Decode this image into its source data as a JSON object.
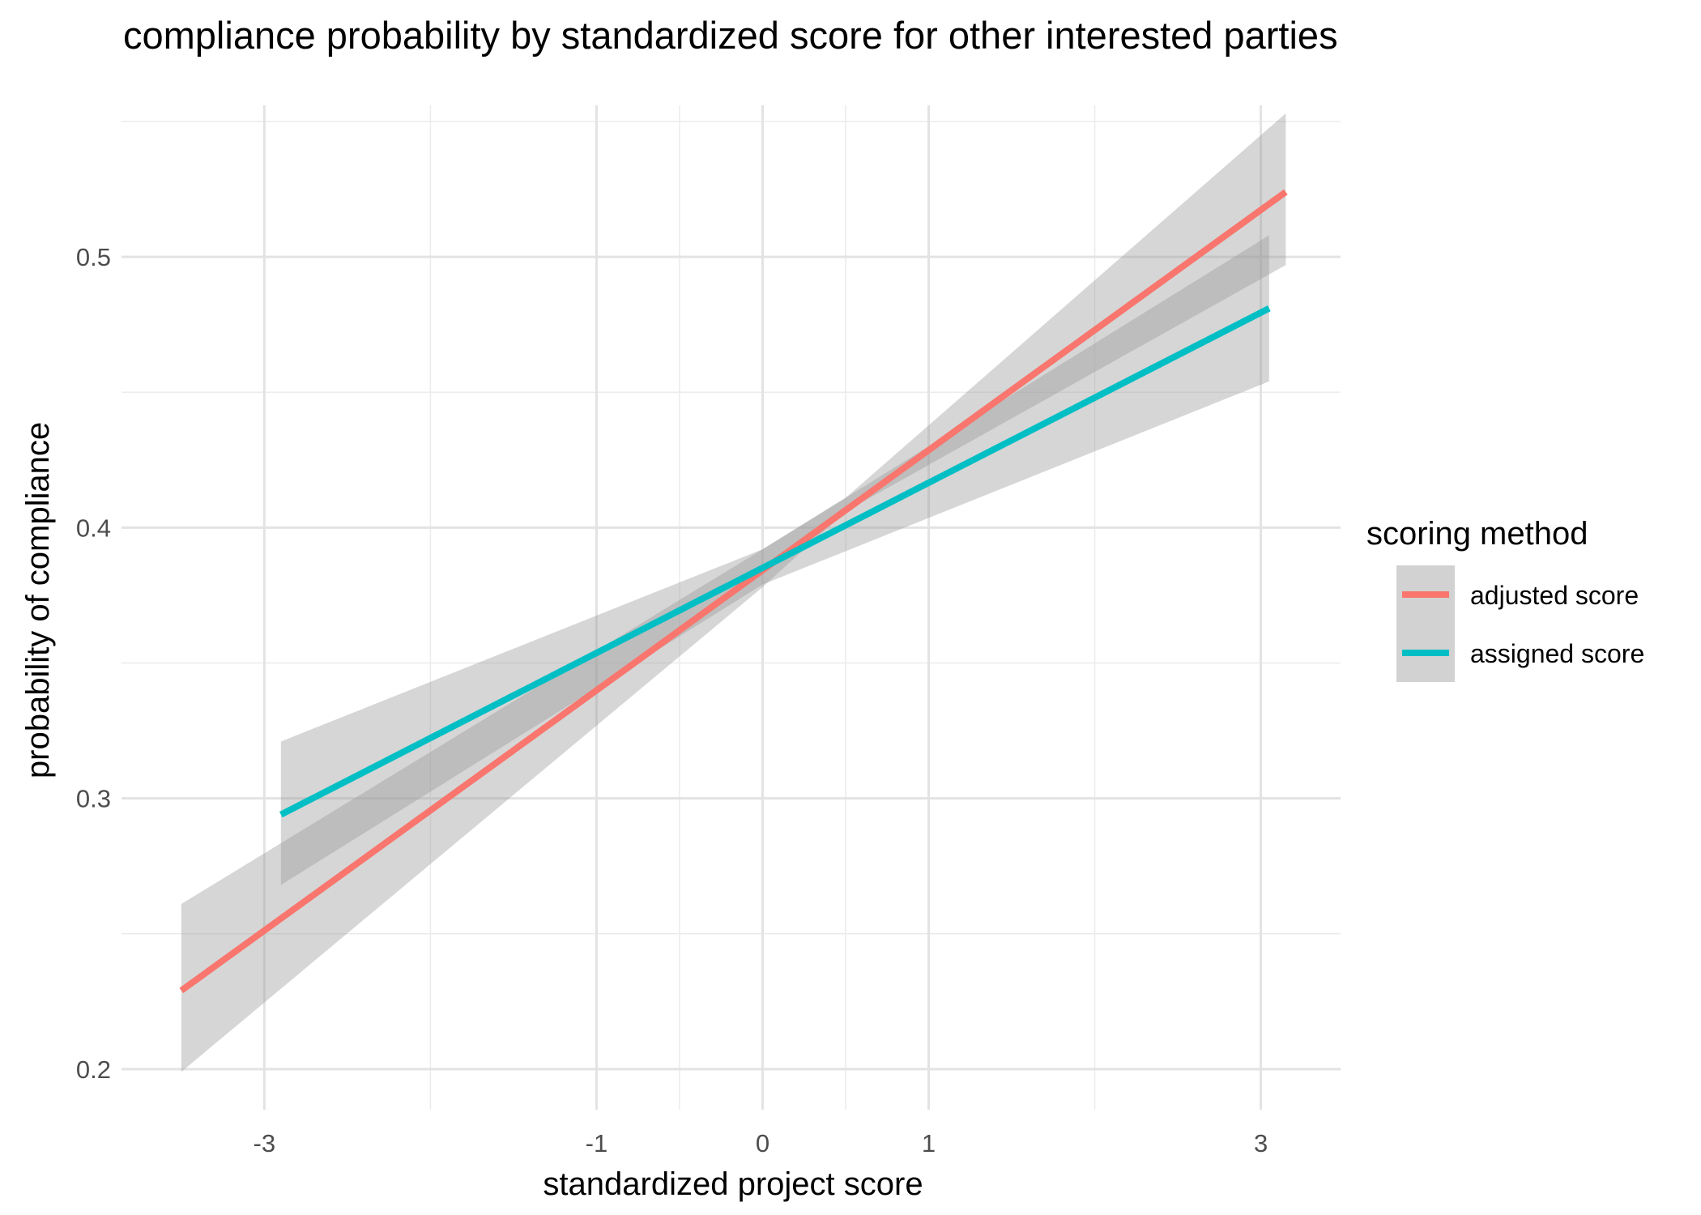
{
  "chart_data": {
    "type": "line",
    "title": "compliance probability by standardized score for other interested parties",
    "xlabel": "standardized project score",
    "ylabel": "probability of compliance",
    "xlim": [
      -3.86,
      3.48
    ],
    "ylim": [
      0.185,
      0.556
    ],
    "xticks": [
      -3,
      -1,
      0,
      1,
      3
    ],
    "xtick_labels": [
      "-3",
      "-1",
      "0",
      "1",
      "3"
    ],
    "x_minor_grid": [
      -2,
      -0.5,
      0.5,
      2
    ],
    "yticks": [
      0.2,
      0.3,
      0.4,
      0.5
    ],
    "ytick_labels": [
      "0.2",
      "0.3",
      "0.4",
      "0.5"
    ],
    "y_minor_grid": [
      0.25,
      0.35,
      0.45,
      0.55
    ],
    "grid": true,
    "legend": {
      "title": "scoring method",
      "position": "right"
    },
    "series": [
      {
        "name": "adjusted score",
        "color": "#F8766D",
        "x": [
          -3.5,
          3.15
        ],
        "y": [
          0.229,
          0.524
        ],
        "ribbon": {
          "x": [
            -3.5,
            0,
            0.5,
            3.15
          ],
          "lower": [
            0.199,
            0.378,
            0.406,
            0.497
          ],
          "upper": [
            0.261,
            0.392,
            0.411,
            0.553
          ]
        }
      },
      {
        "name": "assigned score",
        "color": "#00BFC4",
        "x": [
          -2.9,
          3.05
        ],
        "y": [
          0.294,
          0.481
        ],
        "ribbon": {
          "x": [
            -2.9,
            0,
            3.05
          ],
          "lower": [
            0.268,
            0.379,
            0.454
          ],
          "upper": [
            0.321,
            0.392,
            0.508
          ]
        }
      }
    ]
  }
}
